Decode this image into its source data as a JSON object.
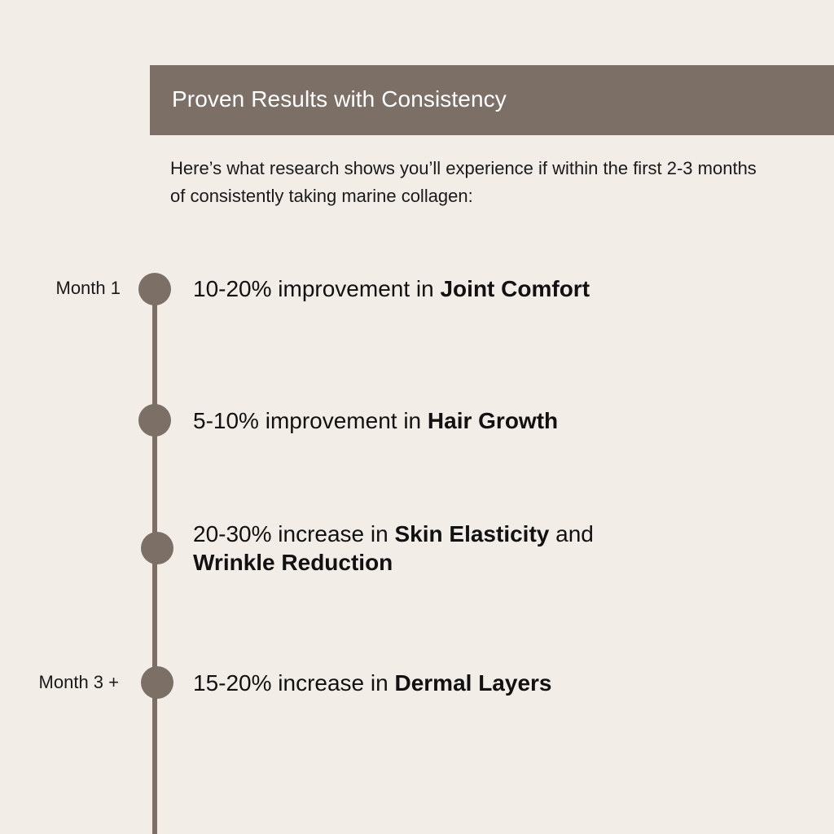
{
  "header": {
    "title": "Proven Results with Consistency"
  },
  "intro": {
    "text": "Here’s what research shows you’ll experience if within the first 2-3 months of consistently taking marine collagen:"
  },
  "colors": {
    "accent": "#7b6f66",
    "background": "#f2ede7"
  },
  "timeline": [
    {
      "month": "Month 1",
      "stat": "10-20%",
      "phrase": " improvement in ",
      "highlight": "Joint Comfort",
      "tail": "",
      "highlight2": ""
    },
    {
      "month": "",
      "stat": "5-10%",
      "phrase": " improvement in ",
      "highlight": "Hair Growth",
      "tail": "",
      "highlight2": ""
    },
    {
      "month": "",
      "stat": "20-30%",
      "phrase": " increase in ",
      "highlight": "Skin Elasticity",
      "tail": " and ",
      "highlight2": "Wrinkle Reduction"
    },
    {
      "month": "Month 3 +",
      "stat": "15-20%",
      "phrase": " increase in ",
      "highlight": "Dermal Layers",
      "tail": "",
      "highlight2": ""
    }
  ]
}
